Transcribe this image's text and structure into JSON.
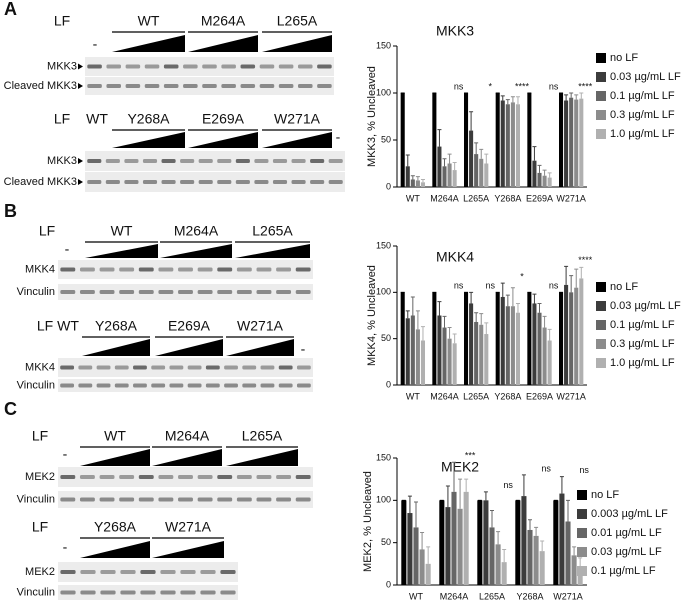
{
  "chart_data": [
    {
      "type": "bar",
      "title": "MKK3",
      "y_label": "MKK3, % Uncleaved",
      "categories": [
        "WT",
        "M264A",
        "L265A",
        "Y268A",
        "E269A",
        "W271A"
      ],
      "ylim": [
        0,
        150
      ],
      "yticks": [
        0,
        50,
        100,
        150
      ],
      "series": [
        {
          "name": "no LF",
          "color": "#000000",
          "values": [
            100,
            100,
            100,
            100,
            100,
            100
          ],
          "errors": [
            0,
            0,
            0,
            0,
            0,
            0
          ]
        },
        {
          "name": "0.03 µg/mL LF",
          "color": "#3c3c3c",
          "values": [
            22,
            43,
            60,
            92,
            28,
            92
          ],
          "errors": [
            12,
            18,
            20,
            5,
            15,
            6
          ]
        },
        {
          "name": "0.1 µg/mL LF",
          "color": "#666666",
          "values": [
            8,
            22,
            35,
            88,
            15,
            95
          ],
          "errors": [
            4,
            8,
            12,
            5,
            8,
            5
          ]
        },
        {
          "name": "0.3 µg/mL LF",
          "color": "#8c8c8c",
          "values": [
            7,
            25,
            30,
            90,
            12,
            93
          ],
          "errors": [
            4,
            10,
            10,
            6,
            6,
            5
          ]
        },
        {
          "name": "1.0 µg/mL LF",
          "color": "#b0b0b0",
          "values": [
            5,
            18,
            25,
            88,
            10,
            94
          ],
          "errors": [
            3,
            8,
            10,
            8,
            5,
            6
          ]
        }
      ],
      "significance": [
        null,
        "ns",
        "*",
        "****",
        "ns",
        "****"
      ]
    },
    {
      "type": "bar",
      "title": "MKK4",
      "y_label": "MKK4, % Uncleaved",
      "categories": [
        "WT",
        "M264A",
        "L265A",
        "Y268A",
        "E269A",
        "W271A"
      ],
      "ylim": [
        0,
        150
      ],
      "yticks": [
        0,
        50,
        100,
        150
      ],
      "series": [
        {
          "name": "no LF",
          "color": "#000000",
          "values": [
            100,
            100,
            100,
            100,
            100,
            100
          ],
          "errors": [
            0,
            0,
            0,
            0,
            0,
            0
          ]
        },
        {
          "name": "0.03 µg/mL LF",
          "color": "#3c3c3c",
          "values": [
            72,
            75,
            88,
            95,
            88,
            108
          ],
          "errors": [
            8,
            15,
            12,
            15,
            10,
            20
          ]
        },
        {
          "name": "0.1 µg/mL LF",
          "color": "#666666",
          "values": [
            75,
            62,
            68,
            85,
            78,
            100
          ],
          "errors": [
            20,
            12,
            10,
            12,
            10,
            18
          ]
        },
        {
          "name": "0.3 µg/mL LF",
          "color": "#8c8c8c",
          "values": [
            60,
            50,
            65,
            85,
            62,
            105
          ],
          "errors": [
            20,
            12,
            12,
            20,
            12,
            20
          ]
        },
        {
          "name": "1.0 µg/mL LF",
          "color": "#b0b0b0",
          "values": [
            48,
            45,
            55,
            78,
            48,
            115
          ],
          "errors": [
            15,
            10,
            12,
            10,
            12,
            12
          ]
        }
      ],
      "significance": [
        null,
        "ns",
        "ns",
        "*",
        "ns",
        "****"
      ]
    },
    {
      "type": "bar",
      "title": "MEK2",
      "y_label": "MEK2, % Uncleaved",
      "categories": [
        "WT",
        "M264A",
        "L265A",
        "Y268A",
        "W271A"
      ],
      "ylim": [
        0,
        150
      ],
      "yticks": [
        0,
        50,
        100,
        150
      ],
      "series": [
        {
          "name": "no LF",
          "color": "#000000",
          "values": [
            100,
            100,
            100,
            100,
            100
          ],
          "errors": [
            0,
            0,
            0,
            0,
            0
          ]
        },
        {
          "name": "0.003 µg/mL LF",
          "color": "#3c3c3c",
          "values": [
            85,
            92,
            100,
            105,
            108
          ],
          "errors": [
            20,
            25,
            10,
            25,
            20
          ]
        },
        {
          "name": "0.01 µg/mL LF",
          "color": "#666666",
          "values": [
            68,
            110,
            68,
            65,
            75
          ],
          "errors": [
            30,
            35,
            20,
            12,
            25
          ]
        },
        {
          "name": "0.03 µg/mL LF",
          "color": "#8c8c8c",
          "values": [
            42,
            90,
            48,
            58,
            35
          ],
          "errors": [
            20,
            35,
            15,
            10,
            10
          ]
        },
        {
          "name": "0.1 µg/mL LF",
          "color": "#b0b0b0",
          "values": [
            25,
            110,
            27,
            40,
            22
          ],
          "errors": [
            20,
            15,
            15,
            12,
            10
          ]
        }
      ],
      "significance": [
        null,
        "***",
        "ns",
        "ns",
        "ns"
      ]
    }
  ],
  "blots": [
    {
      "letter": "A",
      "gels": [
        {
          "lf": "LF",
          "minus": "-",
          "groups": [
            "WT",
            "M264A",
            "L265A"
          ],
          "rows": [
            "MKK3",
            "Cleaved MKK3"
          ]
        },
        {
          "lf": "LF",
          "single": "WT",
          "groups": [
            "Y268A",
            "E269A",
            "W271A"
          ],
          "minus": "-",
          "rows": [
            "MKK3",
            "Cleaved MKK3"
          ]
        }
      ]
    },
    {
      "letter": "B",
      "gels": [
        {
          "lf": "LF",
          "minus": "-",
          "groups": [
            "WT",
            "M264A",
            "L265A"
          ],
          "rows": [
            "MKK4",
            "Vinculin"
          ]
        },
        {
          "lf": "LF",
          "single": "WT",
          "groups": [
            "Y268A",
            "E269A",
            "W271A"
          ],
          "minus": "-",
          "rows": [
            "MKK4",
            "Vinculin"
          ]
        }
      ]
    },
    {
      "letter": "C",
      "gels": [
        {
          "lf": "LF",
          "minus": "-",
          "groups": [
            "WT",
            "M264A",
            "L265A"
          ],
          "rows": [
            "MEK2",
            "Vinculin"
          ]
        },
        {
          "lf": "LF",
          "minus": "-",
          "groups": [
            "Y268A",
            "W271A"
          ],
          "rows": [
            "MEK2",
            "Vinculin"
          ]
        }
      ]
    }
  ]
}
